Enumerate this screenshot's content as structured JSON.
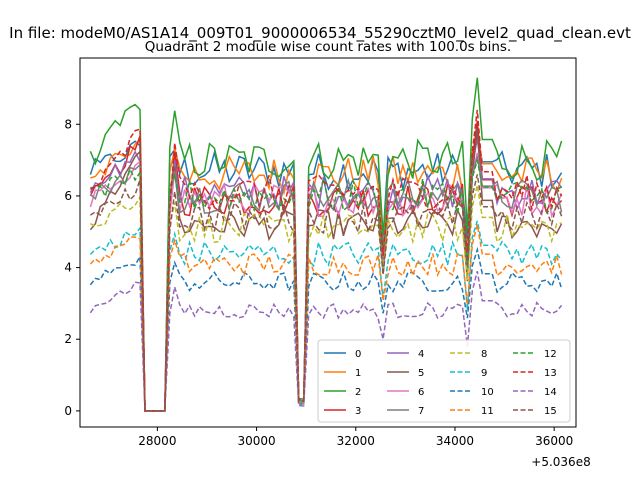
{
  "figure": {
    "suptitle": "In file: modeM0/AS1A14_009T01_9000006534_55290cztM0_level2_quad_clean.evt"
  },
  "chart_data": {
    "type": "line",
    "title": "Quadrant 2 module wise count rates with 100.0s bins.",
    "xlabel": "",
    "ylabel": "",
    "x_offset_label": "+5.036e8",
    "x_ticks": [
      28000,
      30000,
      32000,
      34000,
      36000
    ],
    "y_ticks": [
      0,
      2,
      4,
      6,
      8
    ],
    "xlim": [
      26440,
      36440
    ],
    "ylim": [
      -0.45,
      9.85
    ],
    "legend_position": "lower right",
    "colors": [
      "#1f77b4",
      "#ff7f0e",
      "#2ca02c",
      "#d62728",
      "#9467bd",
      "#8c564b",
      "#e377c2",
      "#7f7f7f",
      "#bcbd22",
      "#17becf"
    ],
    "series": [
      {
        "name": "0",
        "style": "solid",
        "color": "#1f77b4",
        "level": 6.7,
        "peak": 7.7
      },
      {
        "name": "1",
        "style": "solid",
        "color": "#ff7f0e",
        "level": 6.6,
        "peak": 7.8
      },
      {
        "name": "2",
        "style": "solid",
        "color": "#2ca02c",
        "level": 7.0,
        "peak": 9.3
      },
      {
        "name": "3",
        "style": "solid",
        "color": "#d62728",
        "level": 5.9,
        "peak": 8.1
      },
      {
        "name": "4",
        "style": "solid",
        "color": "#9467bd",
        "level": 6.1,
        "peak": 7.6
      },
      {
        "name": "5",
        "style": "solid",
        "color": "#8c564b",
        "level": 5.2,
        "peak": 7.9
      },
      {
        "name": "6",
        "style": "solid",
        "color": "#e377c2",
        "level": 5.9,
        "peak": 7.2
      },
      {
        "name": "7",
        "style": "solid",
        "color": "#7f7f7f",
        "level": 6.0,
        "peak": 7.1
      },
      {
        "name": "8",
        "style": "dashed",
        "color": "#bcbd22",
        "level": 5.1,
        "peak": 6.3
      },
      {
        "name": "9",
        "style": "dashed",
        "color": "#17becf",
        "level": 4.4,
        "peak": 5.3
      },
      {
        "name": "10",
        "style": "dashed",
        "color": "#1f77b4",
        "level": 3.6,
        "peak": 4.5
      },
      {
        "name": "11",
        "style": "dashed",
        "color": "#ff7f0e",
        "level": 4.1,
        "peak": 5.2
      },
      {
        "name": "12",
        "style": "dashed",
        "color": "#2ca02c",
        "level": 6.0,
        "peak": 7.0
      },
      {
        "name": "13",
        "style": "dashed",
        "color": "#d62728",
        "level": 6.1,
        "peak": 8.4
      },
      {
        "name": "14",
        "style": "dashed",
        "color": "#9467bd",
        "level": 2.8,
        "peak": 3.9
      },
      {
        "name": "15",
        "style": "dashed",
        "color": "#8c564b",
        "level": 5.4,
        "peak": 6.6
      }
    ]
  }
}
